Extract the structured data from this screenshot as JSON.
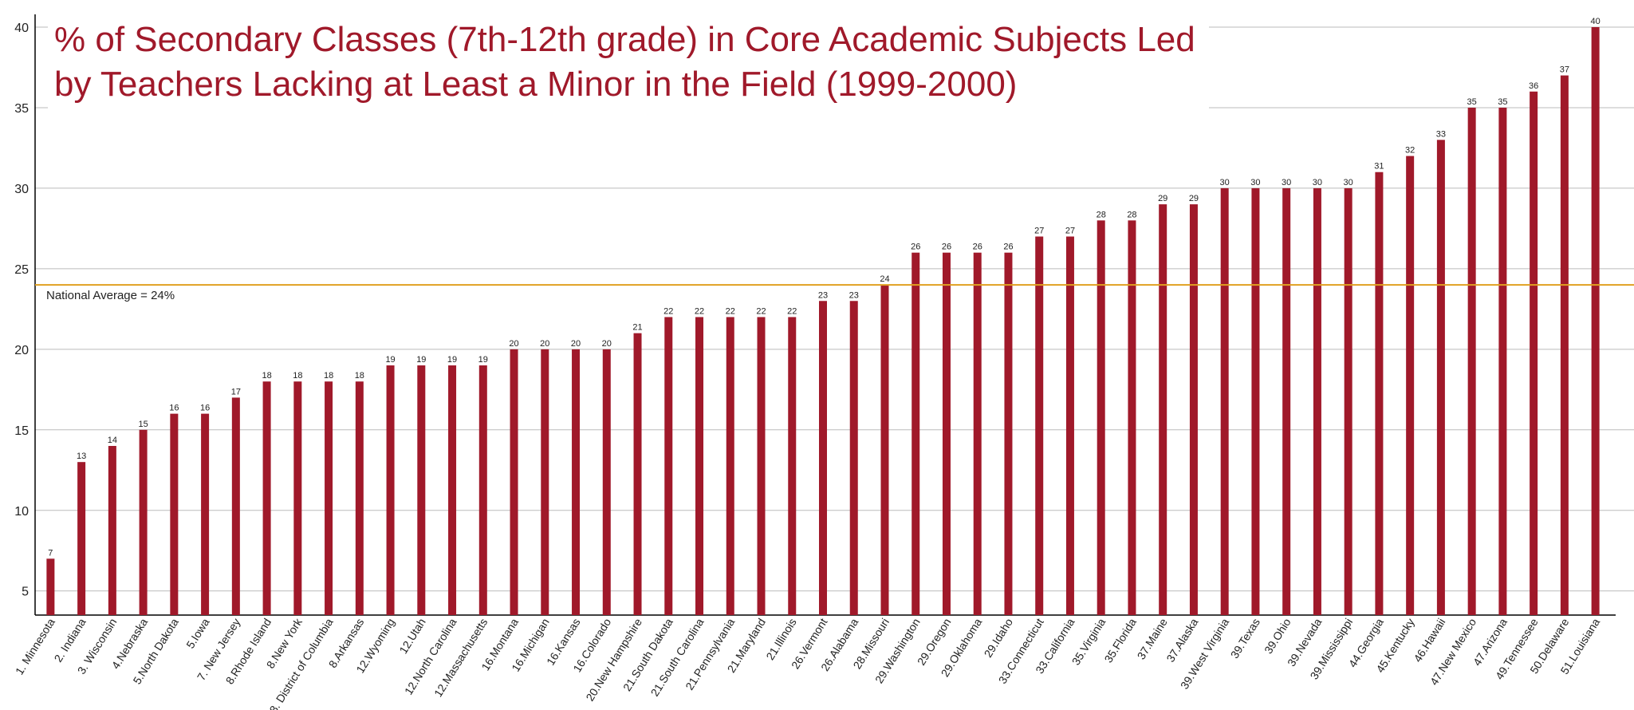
{
  "chart_data": {
    "type": "bar",
    "title": "% of Secondary Classes (7th-12th grade) in Core Academic Subjects Led by Teachers Lacking at Least a Minor in the Field (1999-2000)",
    "categories": [
      "1. Minnesota",
      "2. Indiana",
      "3. Wisconsin",
      "4.Nebraska",
      "5.North Dakota",
      "5.Iowa",
      "7. New Jersey",
      "8.Rhode Island",
      "8.New York",
      "8. District of Columbia",
      "8.Arkansas",
      "12.Wyoming",
      "12.Utah",
      "12.North Carolina",
      "12.Massachusetts",
      "16.Montana",
      "16.Michigan",
      "16.Kansas",
      "16.Colorado",
      "20.New Hampshire",
      "21.South Dakota",
      "21.South Carolina",
      "21.Pennsylvania",
      "21.Maryland",
      "21.Illinois",
      "26.Vermont",
      "26.Alabama",
      "28.Missouri",
      "29.Washington",
      "29.Oregon",
      "29.Oklahoma",
      "29.Idaho",
      "33.Connecticut",
      "33.California",
      "35.Virginia",
      "35.Florida",
      "37.Maine",
      "37.Alaska",
      "39.West Virginia",
      "39.Texas",
      "39.Ohio",
      "39.Nevada",
      "39.Mississippi",
      "44.Georgia",
      "45.Kentucky",
      "46.Hawaii",
      "47.New Mexico",
      "47.Arizona",
      "49.Tennessee",
      "50.Delaware",
      "51.Louisiana"
    ],
    "values": [
      7,
      13,
      14,
      15,
      16,
      16,
      17,
      18,
      18,
      18,
      18,
      19,
      19,
      19,
      19,
      20,
      20,
      20,
      20,
      21,
      22,
      22,
      22,
      22,
      22,
      23,
      23,
      24,
      26,
      26,
      26,
      26,
      27,
      27,
      28,
      28,
      29,
      29,
      30,
      30,
      30,
      30,
      30,
      31,
      32,
      33,
      35,
      35,
      36,
      37,
      40
    ],
    "color": "#a0192a",
    "ylim": [
      3.5,
      40
    ],
    "yticks": [
      5,
      10,
      15,
      20,
      25,
      30,
      35,
      40
    ],
    "grid": true,
    "reference_line": {
      "value": 24,
      "label": "National Average = 24%",
      "color": "#e0a020"
    }
  }
}
